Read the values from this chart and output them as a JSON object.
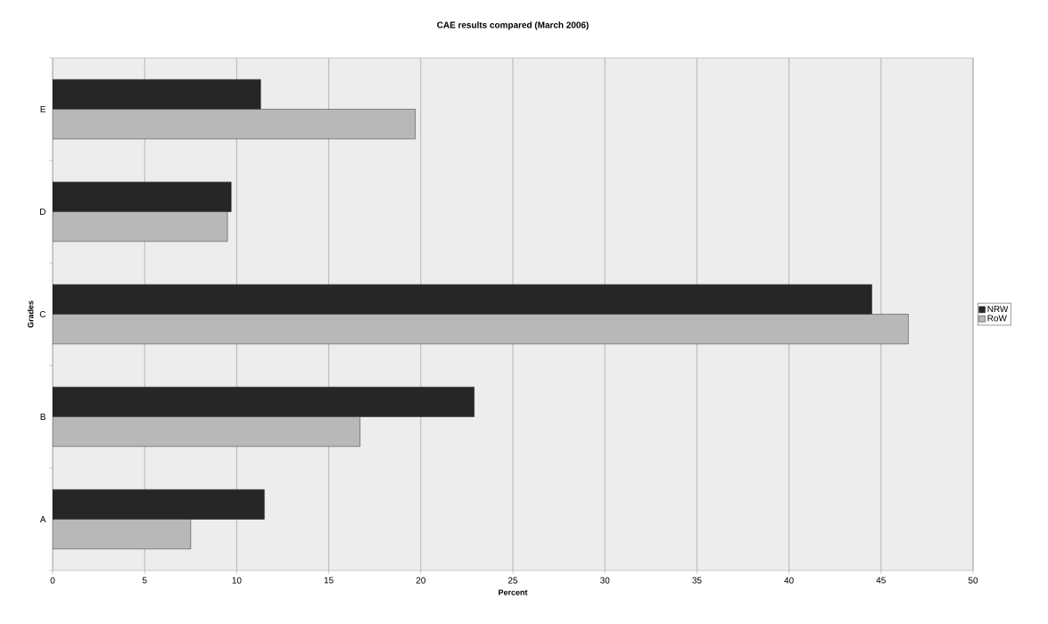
{
  "chart_data": {
    "type": "bar",
    "orientation": "horizontal",
    "title": "CAE results compared (March 2006)",
    "xlabel": "Percent",
    "ylabel": "Grades",
    "categories": [
      "E",
      "D",
      "C",
      "B",
      "A"
    ],
    "series": [
      {
        "name": "NRW",
        "color": "#262626",
        "values": [
          11.3,
          9.7,
          44.5,
          22.9,
          11.5
        ]
      },
      {
        "name": "RoW",
        "color": "#b8b8b8",
        "values": [
          19.7,
          9.5,
          46.5,
          16.7,
          7.5
        ]
      }
    ],
    "xlim": [
      0,
      50
    ],
    "xticks": [
      0,
      5,
      10,
      15,
      20,
      25,
      30,
      35,
      40,
      45,
      50
    ],
    "grid": "x",
    "legend": "right"
  }
}
